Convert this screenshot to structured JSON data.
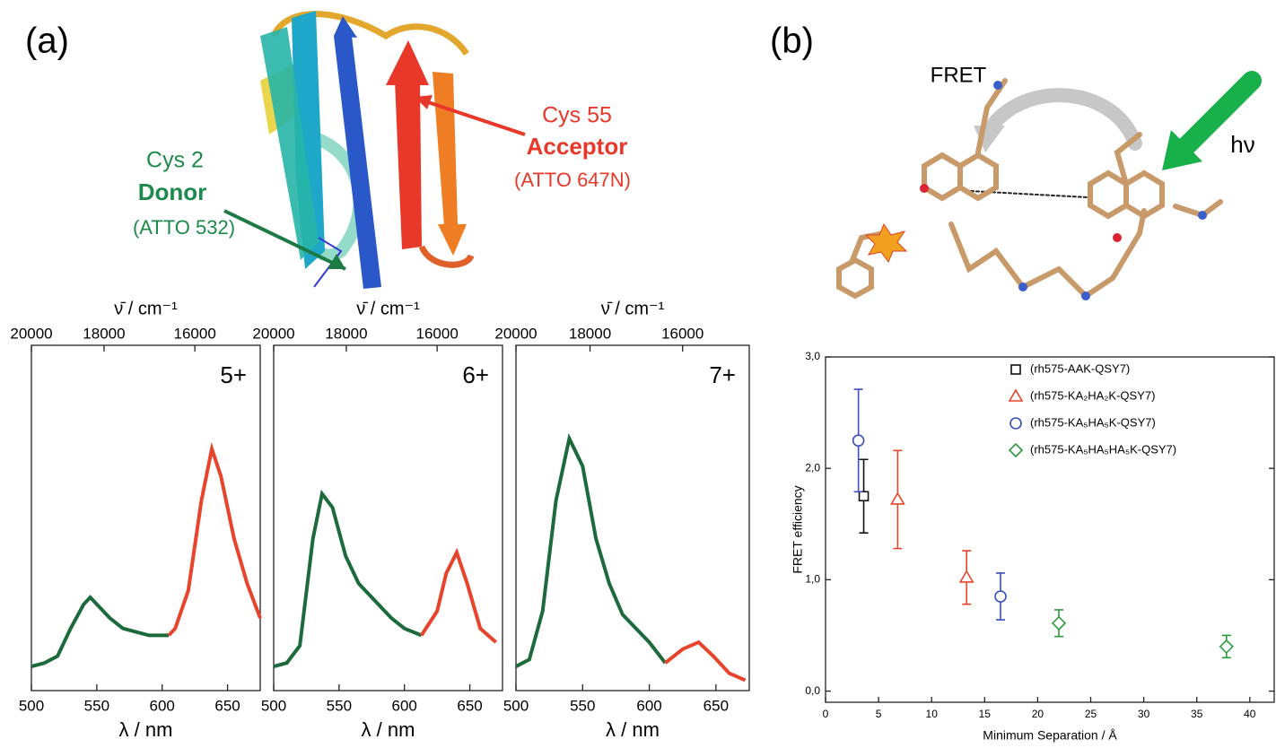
{
  "figure": {
    "panel_a": "(a)",
    "acceptor_residue": "Cys 55",
    "acceptor_role": "Acceptor",
    "acceptor_dye": "(ATTO 647N)",
    "donor_residue": "Cys 2",
    "donor_role": "Donor",
    "donor_dye": "(ATTO 532)",
    "panel_b": "(b)",
    "fret": "FRET",
    "excitation": "hν"
  },
  "chart_data": [
    {
      "type": "line",
      "label": "5+",
      "xlabel": "λ / nm",
      "x2label": "ν̄ / cm⁻¹",
      "xlim": [
        500,
        675
      ],
      "xticks": [
        500,
        550,
        600,
        650
      ],
      "x2ticks": [
        20000,
        18000,
        16000
      ],
      "ylim": [
        0,
        1
      ],
      "series": [
        {
          "color": "#1d6b3c",
          "x": [
            500,
            510,
            520,
            530,
            540,
            545,
            550,
            560,
            570,
            580,
            590,
            600,
            605
          ],
          "values": [
            0.07,
            0.08,
            0.1,
            0.18,
            0.25,
            0.27,
            0.25,
            0.21,
            0.18,
            0.17,
            0.16,
            0.16,
            0.16
          ]
        },
        {
          "color": "#e8442c",
          "x": [
            605,
            610,
            620,
            630,
            638,
            645,
            655,
            665,
            675
          ],
          "values": [
            0.16,
            0.18,
            0.29,
            0.55,
            0.7,
            0.62,
            0.44,
            0.31,
            0.21
          ]
        }
      ]
    },
    {
      "type": "line",
      "label": "6+",
      "xlabel": "λ / nm",
      "x2label": "ν̄ / cm⁻¹",
      "xlim": [
        500,
        675
      ],
      "xticks": [
        500,
        550,
        600,
        650
      ],
      "x2ticks": [
        20000,
        18000,
        16000
      ],
      "ylim": [
        0,
        1
      ],
      "series": [
        {
          "color": "#1d6b3c",
          "x": [
            500,
            510,
            520,
            530,
            537,
            545,
            555,
            565,
            580,
            590,
            600,
            613
          ],
          "values": [
            0.07,
            0.08,
            0.13,
            0.44,
            0.57,
            0.53,
            0.39,
            0.31,
            0.25,
            0.21,
            0.18,
            0.16
          ]
        },
        {
          "color": "#e8442c",
          "x": [
            613,
            625,
            632,
            640,
            648,
            658,
            670
          ],
          "values": [
            0.16,
            0.23,
            0.34,
            0.4,
            0.31,
            0.18,
            0.14
          ]
        }
      ]
    },
    {
      "type": "line",
      "label": "7+",
      "xlabel": "λ / nm",
      "x2label": "ν̄ / cm⁻¹",
      "xlim": [
        500,
        675
      ],
      "xticks": [
        500,
        550,
        600,
        650
      ],
      "x2ticks": [
        20000,
        18000,
        16000
      ],
      "ylim": [
        0,
        1
      ],
      "series": [
        {
          "color": "#1d6b3c",
          "x": [
            500,
            510,
            520,
            530,
            540,
            550,
            560,
            570,
            580,
            590,
            600,
            612
          ],
          "values": [
            0.07,
            0.09,
            0.23,
            0.55,
            0.73,
            0.65,
            0.44,
            0.31,
            0.22,
            0.18,
            0.14,
            0.08
          ]
        },
        {
          "color": "#e8442c",
          "x": [
            612,
            625,
            637,
            648,
            660,
            672
          ],
          "values": [
            0.08,
            0.12,
            0.14,
            0.1,
            0.05,
            0.03
          ]
        }
      ]
    },
    {
      "type": "scatter",
      "xlabel": "Minimum Separation / Å",
      "ylabel": "FRET efficiency",
      "xlim": [
        0,
        42.3
      ],
      "ylim": [
        -0.1,
        3.0
      ],
      "xticks": [
        0,
        5,
        10,
        15,
        20,
        25,
        30,
        35,
        40
      ],
      "yticks": [
        {
          "value": 0,
          "label": "0,0"
        },
        {
          "value": 1,
          "label": "1,0"
        },
        {
          "value": 2,
          "label": "2,0"
        },
        {
          "value": 3,
          "label": "3,0"
        }
      ],
      "series": [
        {
          "name": "(rh575-AAK-QSY7)",
          "color": "#111111",
          "marker": "square",
          "x": [
            3.6
          ],
          "values": [
            1.75
          ],
          "errors": [
            0.33
          ]
        },
        {
          "name": "(rh575-KA₂HA₂K-QSY7)",
          "color": "#e8442c",
          "marker": "triangle",
          "x": [
            6.8,
            13.3
          ],
          "values": [
            1.72,
            1.02
          ],
          "errors": [
            0.44,
            0.24
          ]
        },
        {
          "name": "(rh575-KA₅HA₅K-QSY7)",
          "color": "#3a4fb8",
          "marker": "circle",
          "x": [
            3.1,
            16.5
          ],
          "values": [
            2.25,
            0.85
          ],
          "errors": [
            0.46,
            0.21
          ]
        },
        {
          "name": "(rh575-KA₅HA₅HA₅K-QSY7)",
          "color": "#2e9a3e",
          "marker": "diamond",
          "x": [
            22,
            37.8
          ],
          "values": [
            0.61,
            0.4
          ],
          "errors": [
            0.12,
            0.1
          ]
        }
      ]
    }
  ]
}
